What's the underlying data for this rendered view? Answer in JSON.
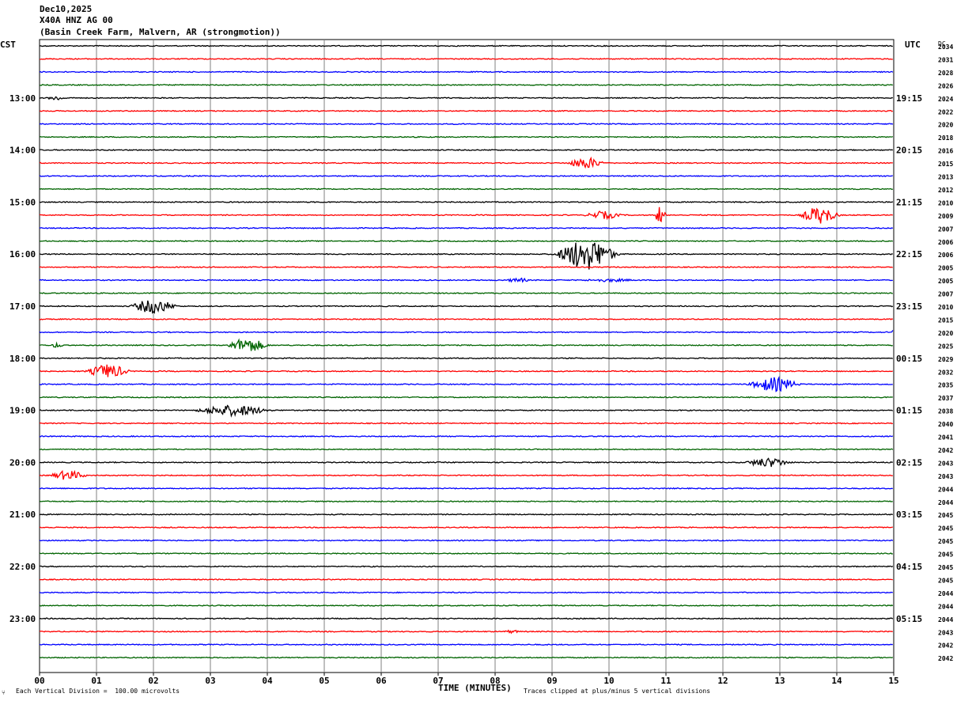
{
  "header": {
    "date": "Dec10,2025",
    "station": "X40A HNZ AG 00",
    "location": "(Basin Creek Farm, Malvern, AR (strongmotion))"
  },
  "left_zone": "CST",
  "right_zone": "UTC",
  "dc_label": "DC",
  "footer": {
    "scale": "Each Vertical Division =  100.00 microvolts",
    "clip": "Traces clipped at plus/minus 5 vertical divisions",
    "corner_mark": "⑂"
  },
  "colors": {
    "cycle": [
      "#000000",
      "#ff0000",
      "#0000ff",
      "#006400"
    ],
    "grid": "#808080"
  },
  "chart_data": {
    "type": "line",
    "title": "",
    "xlabel": "TIME (MINUTES)",
    "xlim": [
      0,
      15
    ],
    "x_ticks": [
      "00",
      "01",
      "02",
      "03",
      "04",
      "05",
      "06",
      "07",
      "08",
      "09",
      "10",
      "11",
      "12",
      "13",
      "14",
      "15"
    ],
    "left_hour_labels": [
      "13:00",
      "14:00",
      "15:00",
      "16:00",
      "17:00",
      "18:00",
      "19:00",
      "20:00",
      "21:00",
      "22:00",
      "23:00"
    ],
    "right_hour_labels": [
      "19:15",
      "20:15",
      "21:15",
      "22:15",
      "23:15",
      "00:15",
      "01:15",
      "02:15",
      "03:15",
      "04:15",
      "05:15"
    ],
    "hour_label_first_trace": 4,
    "dc_offsets": [
      "2034",
      "2031",
      "2028",
      "2026",
      "2024",
      "2022",
      "2020",
      "2018",
      "2016",
      "2015",
      "2013",
      "2012",
      "2010",
      "2009",
      "2007",
      "2006",
      "2006",
      "2005",
      "2005",
      "2007",
      "2010",
      "2015",
      "2020",
      "2025",
      "2029",
      "2032",
      "2035",
      "2037",
      "2038",
      "2040",
      "2041",
      "2042",
      "2043",
      "2043",
      "2044",
      "2044",
      "2045",
      "2045",
      "2045",
      "2045",
      "2045",
      "2045",
      "2044",
      "2044",
      "2044",
      "2043",
      "2042",
      "2042"
    ],
    "events": [
      {
        "trace": 4,
        "minute": 0.3,
        "amplitude": 3,
        "duration": 0.5
      },
      {
        "trace": 9,
        "minute": 9.6,
        "amplitude": 7,
        "duration": 0.9
      },
      {
        "trace": 13,
        "minute": 9.9,
        "amplitude": 5,
        "duration": 0.9
      },
      {
        "trace": 13,
        "minute": 10.9,
        "amplitude": 13,
        "duration": 0.25
      },
      {
        "trace": 13,
        "minute": 13.7,
        "amplitude": 11,
        "duration": 0.9
      },
      {
        "trace": 16,
        "minute": 9.6,
        "amplitude": 20,
        "duration": 1.4
      },
      {
        "trace": 18,
        "minute": 8.4,
        "amplitude": 3,
        "duration": 0.6
      },
      {
        "trace": 18,
        "minute": 10.0,
        "amplitude": 2,
        "duration": 1.5
      },
      {
        "trace": 20,
        "minute": 2.0,
        "amplitude": 9,
        "duration": 1.1
      },
      {
        "trace": 22,
        "minute": 15.0,
        "amplitude": 4,
        "duration": 0.1
      },
      {
        "trace": 23,
        "minute": 3.65,
        "amplitude": 9,
        "duration": 1.0
      },
      {
        "trace": 23,
        "minute": 0.3,
        "amplitude": 3,
        "duration": 0.4
      },
      {
        "trace": 25,
        "minute": 1.2,
        "amplitude": 9,
        "duration": 1.0
      },
      {
        "trace": 26,
        "minute": 12.9,
        "amplitude": 9,
        "duration": 1.2
      },
      {
        "trace": 28,
        "minute": 3.4,
        "amplitude": 7,
        "duration": 1.8
      },
      {
        "trace": 32,
        "minute": 12.8,
        "amplitude": 6,
        "duration": 1.1
      },
      {
        "trace": 33,
        "minute": 0.5,
        "amplitude": 6,
        "duration": 0.9
      },
      {
        "trace": 45,
        "minute": 8.3,
        "amplitude": 2,
        "duration": 0.5
      }
    ]
  }
}
